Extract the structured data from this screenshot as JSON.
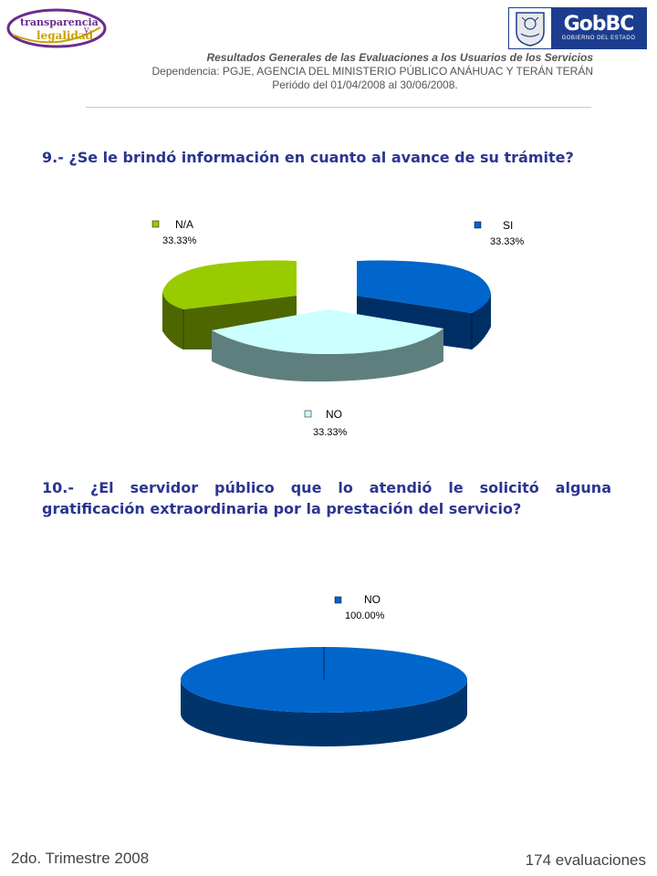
{
  "logos": {
    "left": {
      "line1": "transparencia",
      "line2": "legalidad",
      "mark": "y"
    },
    "right": {
      "title": "GobBC",
      "subtitle": "GOBIERNO DEL ESTADO",
      "seal_icon": "state-seal-icon"
    }
  },
  "header": {
    "line1": "Resultados Generales de las Evaluaciones a los Usuarios de los Servicios",
    "line2": "Dependencia: PGJE, AGENCIA DEL MINISTERIO  PÚBLICO ANÁHUAC Y TERÁN TERÁN",
    "line3": "Periódo del 01/04/2008 al 30/06/2008."
  },
  "questions": {
    "q9": "9.- ¿Se le brindó información en cuanto al avance de su trámite?",
    "q10": "10.- ¿El servidor público que lo atendió le solicitó alguna gratificación extraordinaria por la prestación del servicio?"
  },
  "chart_data": [
    {
      "type": "pie",
      "categories": [
        "SI",
        "NO",
        "N/A"
      ],
      "values": [
        33.33,
        33.33,
        33.33
      ],
      "labels": [
        "33.33%",
        "33.33%",
        "33.33%"
      ],
      "colors": [
        "#0066cc",
        "#ccffff",
        "#99cc00"
      ],
      "style": "3d-exploded",
      "title": ""
    },
    {
      "type": "pie",
      "categories": [
        "NO"
      ],
      "values": [
        100.0
      ],
      "labels": [
        "100.00%"
      ],
      "colors": [
        "#0066cc"
      ],
      "style": "3d",
      "title": ""
    }
  ],
  "footer": {
    "left": "2do. Trimestre 2008",
    "right": "174 evaluaciones"
  }
}
